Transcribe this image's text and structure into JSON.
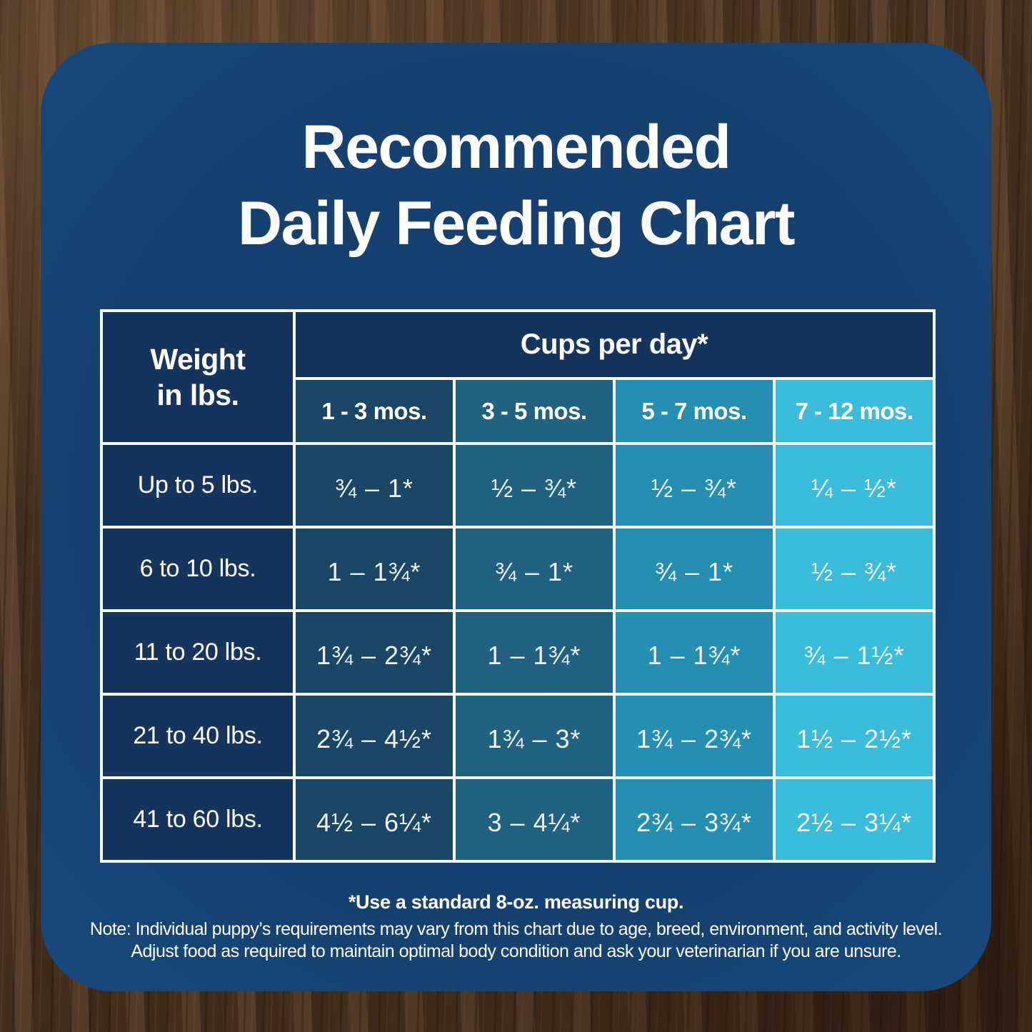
{
  "card": {
    "title_line1": "Recommended",
    "title_line2": "Daily Feeding Chart"
  },
  "table": {
    "weight_header_line1": "Weight",
    "weight_header_line2": "in lbs.",
    "cups_header": "Cups per day*",
    "age_columns": [
      "1 - 3 mos.",
      "3 - 5 mos.",
      "5 - 7 mos.",
      "7 - 12 mos."
    ],
    "rows": [
      {
        "label": "Up to 5 lbs.",
        "values": [
          "¾ – 1*",
          "½ – ¾*",
          "½ – ¾*",
          "¼ – ½*"
        ]
      },
      {
        "label": "6 to 10 lbs.",
        "values": [
          "1 – 1¾*",
          "¾ – 1*",
          "¾ – 1*",
          "½ – ¾*"
        ]
      },
      {
        "label": "11 to 20 lbs.",
        "values": [
          "1¾ – 2¾*",
          "1 – 1¾*",
          "1 – 1¾*",
          "¾ – 1½*"
        ]
      },
      {
        "label": "21 to 40 lbs.",
        "values": [
          "2¾ – 4½*",
          "1¾ – 3*",
          "1¾ – 2¾*",
          "1½ – 2½*"
        ]
      },
      {
        "label": "41 to 60 lbs.",
        "values": [
          "4½ – 6¼*",
          "3 – 4¼*",
          "2¾ – 3¾*",
          "2½ – 3¼*"
        ]
      }
    ]
  },
  "footnotes": {
    "measuring_cup": "*Use a standard 8-oz. measuring cup.",
    "note_line1": "Note: Individual puppy’s requirements may vary from this chart due to age, breed, environment, and activity level.",
    "note_line2": "Adjust food as required to maintain optimal body condition and ask your veterinarian if you are unsure."
  },
  "colors": {
    "card_blue": "#15406F",
    "header_navy": "#16355D",
    "col_1_3_mos": "#1C4665",
    "col_3_5_mos": "#20627F",
    "col_5_7_mos": "#248FB2",
    "col_7_12_mos": "#3BBCDA",
    "table_border": "#F4F8FA",
    "text": "#FFFFFF",
    "background_wood": "#4A3422"
  },
  "chart_data": {
    "type": "table",
    "title": "Recommended Daily Feeding Chart",
    "unit": "cups per day (standard 8-oz. measuring cup)",
    "columns": [
      "Weight in lbs.",
      "1 - 3 mos.",
      "3 - 5 mos.",
      "5 - 7 mos.",
      "7 - 12 mos."
    ],
    "rows": [
      [
        "Up to 5 lbs.",
        "¾ – 1*",
        "½ – ¾*",
        "½ – ¾*",
        "¼ – ½*"
      ],
      [
        "6 to 10 lbs.",
        "1 – 1¾*",
        "¾ – 1*",
        "¾ – 1*",
        "½ – ¾*"
      ],
      [
        "11 to 20 lbs.",
        "1¾ – 2¾*",
        "1 – 1¾*",
        "1 – 1¾*",
        "¾ – 1½*"
      ],
      [
        "21 to 40 lbs.",
        "2¾ – 4½*",
        "1¾ – 3*",
        "1¾ – 2¾*",
        "1½ – 2½*"
      ],
      [
        "41 to 60 lbs.",
        "4½ – 6¼*",
        "3 – 4¼*",
        "2¾ – 3¾*",
        "2½ – 3¼*"
      ]
    ],
    "notes": [
      "*Use a standard 8-oz. measuring cup.",
      "Note: Individual puppy’s requirements may vary from this chart due to age, breed, environment, and activity level.",
      "Adjust food as required to maintain optimal body condition and ask your veterinarian if you are unsure."
    ]
  }
}
